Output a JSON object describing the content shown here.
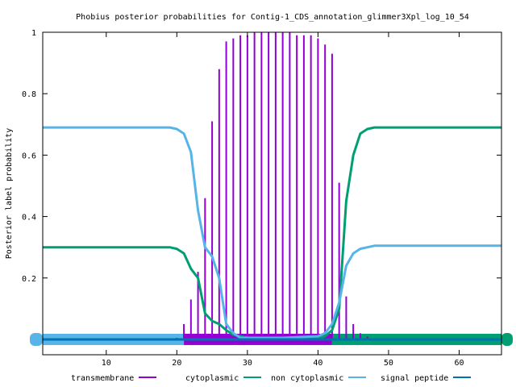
{
  "chart_data": {
    "type": "line",
    "title": "Phobius posterior probabilities for Contig-1_CDS_annotation_glimmer3Xpl_log_10_54",
    "xlabel": "",
    "ylabel": "Posterior label probability",
    "xlim": [
      1,
      66
    ],
    "ylim": [
      -0.05,
      1.0
    ],
    "x_ticks": [
      10,
      20,
      30,
      40,
      50,
      60
    ],
    "y_ticks": [
      0.2,
      0.4,
      0.6,
      0.8,
      1
    ],
    "grid": false,
    "legend_position": "bottom",
    "colors": {
      "transmembrane": "#9400d3",
      "cytoplasmic": "#009e73",
      "non_cytoplasmic": "#56b4e9",
      "signal_peptide": "#0072b2"
    },
    "legend": [
      {
        "label": "transmembrane",
        "color": "#9400d3"
      },
      {
        "label": "cytoplasmic",
        "color": "#009e73"
      },
      {
        "label": "non cytoplasmic",
        "color": "#56b4e9"
      },
      {
        "label": "signal peptide",
        "color": "#0072b2"
      }
    ],
    "transmembrane_impulses": {
      "x": [
        20,
        21,
        22,
        23,
        24,
        25,
        26,
        27,
        28,
        29,
        30,
        31,
        32,
        33,
        34,
        35,
        36,
        37,
        38,
        39,
        40,
        41,
        42,
        43,
        44,
        45,
        46,
        47
      ],
      "y": [
        0.005,
        0.05,
        0.13,
        0.22,
        0.46,
        0.71,
        0.88,
        0.97,
        0.98,
        0.99,
        0.99,
        1.0,
        1.0,
        1.0,
        1.0,
        1.0,
        1.0,
        0.99,
        0.99,
        0.99,
        0.98,
        0.96,
        0.93,
        0.51,
        0.14,
        0.05,
        0.02,
        0.01
      ]
    },
    "series": [
      {
        "name": "cytoplasmic",
        "color": "#009e73",
        "x": [
          1,
          19,
          20,
          21,
          22,
          23,
          24,
          25,
          26,
          27,
          28,
          29,
          30,
          35,
          40,
          41,
          42,
          43,
          44,
          45,
          46,
          47,
          48,
          50,
          66
        ],
        "y": [
          0.3,
          0.3,
          0.295,
          0.28,
          0.23,
          0.2,
          0.085,
          0.06,
          0.05,
          0.03,
          0.015,
          0.01,
          0.005,
          0.005,
          0.005,
          0.01,
          0.03,
          0.1,
          0.45,
          0.6,
          0.67,
          0.685,
          0.69,
          0.69,
          0.69
        ]
      },
      {
        "name": "non cytoplasmic",
        "color": "#56b4e9",
        "x": [
          1,
          19,
          20,
          21,
          22,
          23,
          24,
          25,
          26,
          27,
          28,
          29,
          30,
          35,
          40,
          41,
          42,
          43,
          44,
          45,
          46,
          47,
          48,
          50,
          66
        ],
        "y": [
          0.69,
          0.69,
          0.685,
          0.67,
          0.61,
          0.42,
          0.3,
          0.27,
          0.2,
          0.05,
          0.02,
          0.005,
          0.005,
          0.005,
          0.01,
          0.02,
          0.05,
          0.12,
          0.24,
          0.28,
          0.295,
          0.3,
          0.305,
          0.305,
          0.305
        ]
      },
      {
        "name": "signal peptide",
        "color": "#0072b2",
        "x": [
          1,
          66
        ],
        "y": [
          0.0,
          0.0
        ]
      }
    ],
    "topology_bands": [
      {
        "label": "non cytoplasmic",
        "color": "#56b4e9",
        "x_start": 1,
        "x_end": 21
      },
      {
        "label": "transmembrane",
        "color": "#9400d3",
        "x_start": 21,
        "x_end": 42
      },
      {
        "label": "cytoplasmic",
        "color": "#009e73",
        "x_start": 42,
        "x_end": 66
      }
    ]
  }
}
